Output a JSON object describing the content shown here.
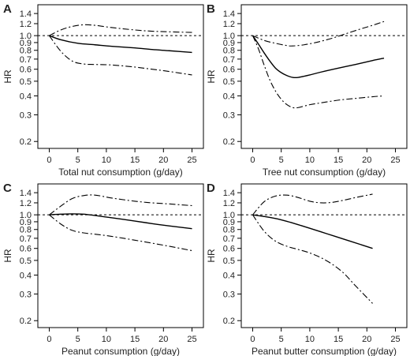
{
  "figure": {
    "background": "#ffffff",
    "line_color": "#000000"
  },
  "chart_data": [
    {
      "panel_label": "A",
      "type": "line",
      "xlabel": "Total nut consumption (g/day)",
      "ylabel": "HR",
      "y_scale": "log",
      "xlim": [
        -2,
        27
      ],
      "ylim": [
        0.18,
        1.6
      ],
      "xticks": [
        0,
        5,
        10,
        15,
        20,
        25
      ],
      "yticks": [
        0.2,
        0.3,
        0.4,
        0.5,
        0.6,
        0.7,
        0.8,
        0.9,
        1.0,
        1.2,
        1.4
      ],
      "ytick_labels": [
        "0.2",
        "0.3",
        "0.4",
        "0.5",
        "0.6",
        "0.7",
        "0.8",
        "0.9",
        "1.0",
        "1.2",
        "1.4"
      ],
      "reference_line": 1.0,
      "grid": false,
      "series": [
        {
          "role": "estimate",
          "style": "solid",
          "x": [
            0,
            2,
            5,
            8,
            11,
            15,
            18,
            21,
            25
          ],
          "y": [
            1.0,
            0.94,
            0.89,
            0.87,
            0.85,
            0.83,
            0.81,
            0.795,
            0.775
          ]
        },
        {
          "role": "upper_ci",
          "style": "dashdot",
          "x": [
            0,
            2,
            4,
            6,
            8,
            11,
            15,
            18,
            21,
            25
          ],
          "y": [
            1.0,
            1.09,
            1.15,
            1.18,
            1.17,
            1.13,
            1.09,
            1.07,
            1.06,
            1.05
          ]
        },
        {
          "role": "lower_ci",
          "style": "dashdot",
          "x": [
            0,
            2,
            4,
            6,
            8,
            11,
            15,
            18,
            21,
            25
          ],
          "y": [
            1.0,
            0.79,
            0.68,
            0.65,
            0.645,
            0.64,
            0.62,
            0.6,
            0.58,
            0.55
          ]
        }
      ]
    },
    {
      "panel_label": "B",
      "type": "line",
      "xlabel": "Tree nut consumption (g/day)",
      "ylabel": "HR",
      "y_scale": "log",
      "xlim": [
        -2,
        27
      ],
      "ylim": [
        0.18,
        1.6
      ],
      "xticks": [
        0,
        5,
        10,
        15,
        20,
        25
      ],
      "yticks": [
        0.2,
        0.3,
        0.4,
        0.5,
        0.6,
        0.7,
        0.8,
        0.9,
        1.0,
        1.2,
        1.4
      ],
      "ytick_labels": [
        "0.2",
        "0.3",
        "0.4",
        "0.5",
        "0.6",
        "0.7",
        "0.8",
        "0.9",
        "1.0",
        "1.2",
        "1.4"
      ],
      "reference_line": 1.0,
      "grid": false,
      "series": [
        {
          "role": "estimate",
          "style": "solid",
          "x": [
            0,
            1,
            2,
            3,
            4,
            5,
            6,
            7,
            8,
            10,
            12,
            15,
            18,
            21,
            23
          ],
          "y": [
            1.0,
            0.88,
            0.77,
            0.68,
            0.61,
            0.57,
            0.545,
            0.53,
            0.53,
            0.55,
            0.575,
            0.61,
            0.645,
            0.685,
            0.71
          ]
        },
        {
          "role": "upper_ci",
          "style": "dashdot",
          "x": [
            0,
            2,
            4,
            6,
            7,
            9,
            11,
            13,
            15,
            17,
            19,
            21,
            23
          ],
          "y": [
            1.0,
            0.93,
            0.89,
            0.86,
            0.855,
            0.87,
            0.9,
            0.94,
            0.99,
            1.05,
            1.11,
            1.17,
            1.24
          ]
        },
        {
          "role": "lower_ci",
          "style": "dashdot",
          "x": [
            0,
            1,
            2,
            3,
            4,
            5,
            6,
            7,
            8,
            10,
            12,
            15,
            18,
            21,
            23
          ],
          "y": [
            1.0,
            0.82,
            0.64,
            0.51,
            0.43,
            0.38,
            0.35,
            0.335,
            0.335,
            0.35,
            0.36,
            0.375,
            0.385,
            0.395,
            0.4
          ]
        }
      ]
    },
    {
      "panel_label": "C",
      "type": "line",
      "xlabel": "Peanut consumption (g/day)",
      "ylabel": "HR",
      "y_scale": "log",
      "xlim": [
        -2,
        27
      ],
      "ylim": [
        0.18,
        1.6
      ],
      "xticks": [
        0,
        5,
        10,
        15,
        20,
        25
      ],
      "yticks": [
        0.2,
        0.3,
        0.4,
        0.5,
        0.6,
        0.7,
        0.8,
        0.9,
        1.0,
        1.2,
        1.4
      ],
      "ytick_labels": [
        "0.2",
        "0.3",
        "0.4",
        "0.5",
        "0.6",
        "0.7",
        "0.8",
        "0.9",
        "1.0",
        "1.2",
        "1.4"
      ],
      "reference_line": 1.0,
      "grid": false,
      "series": [
        {
          "role": "estimate",
          "style": "solid",
          "x": [
            0,
            2,
            4,
            6,
            8,
            11,
            15,
            18,
            21,
            25
          ],
          "y": [
            1.0,
            1.01,
            1.015,
            1.01,
            0.99,
            0.955,
            0.91,
            0.875,
            0.845,
            0.81
          ]
        },
        {
          "role": "upper_ci",
          "style": "dashdot",
          "x": [
            0,
            2,
            4,
            6,
            8,
            11,
            15,
            18,
            21,
            25
          ],
          "y": [
            1.0,
            1.14,
            1.28,
            1.34,
            1.35,
            1.29,
            1.23,
            1.2,
            1.18,
            1.15
          ]
        },
        {
          "role": "lower_ci",
          "style": "dashdot",
          "x": [
            0,
            2,
            4,
            6,
            8,
            11,
            15,
            18,
            21,
            25
          ],
          "y": [
            1.0,
            0.87,
            0.79,
            0.76,
            0.745,
            0.72,
            0.68,
            0.65,
            0.62,
            0.58
          ]
        }
      ]
    },
    {
      "panel_label": "D",
      "type": "line",
      "xlabel": "Peanut butter consumption (g/day)",
      "ylabel": "HR",
      "y_scale": "log",
      "xlim": [
        -2,
        27
      ],
      "ylim": [
        0.18,
        1.6
      ],
      "xticks": [
        0,
        5,
        10,
        15,
        20,
        25
      ],
      "yticks": [
        0.2,
        0.3,
        0.4,
        0.5,
        0.6,
        0.7,
        0.8,
        0.9,
        1.0,
        1.2,
        1.4
      ],
      "ytick_labels": [
        "0.2",
        "0.3",
        "0.4",
        "0.5",
        "0.6",
        "0.7",
        "0.8",
        "0.9",
        "1.0",
        "1.2",
        "1.4"
      ],
      "reference_line": 1.0,
      "grid": false,
      "series": [
        {
          "role": "estimate",
          "style": "solid",
          "x": [
            0,
            2,
            4,
            6,
            8,
            10,
            13,
            16,
            19,
            21
          ],
          "y": [
            1.0,
            0.975,
            0.945,
            0.905,
            0.86,
            0.815,
            0.75,
            0.69,
            0.635,
            0.6
          ]
        },
        {
          "role": "upper_ci",
          "style": "dashdot",
          "x": [
            0,
            2,
            4,
            6,
            8,
            10,
            12,
            14,
            16,
            18,
            21
          ],
          "y": [
            1.0,
            1.22,
            1.33,
            1.35,
            1.3,
            1.23,
            1.2,
            1.21,
            1.25,
            1.3,
            1.37
          ]
        },
        {
          "role": "lower_ci",
          "style": "dashdot",
          "x": [
            0,
            2,
            4,
            6,
            8,
            10,
            12,
            14,
            16,
            18,
            21
          ],
          "y": [
            1.0,
            0.78,
            0.67,
            0.62,
            0.59,
            0.56,
            0.52,
            0.47,
            0.41,
            0.34,
            0.26
          ]
        }
      ]
    }
  ]
}
